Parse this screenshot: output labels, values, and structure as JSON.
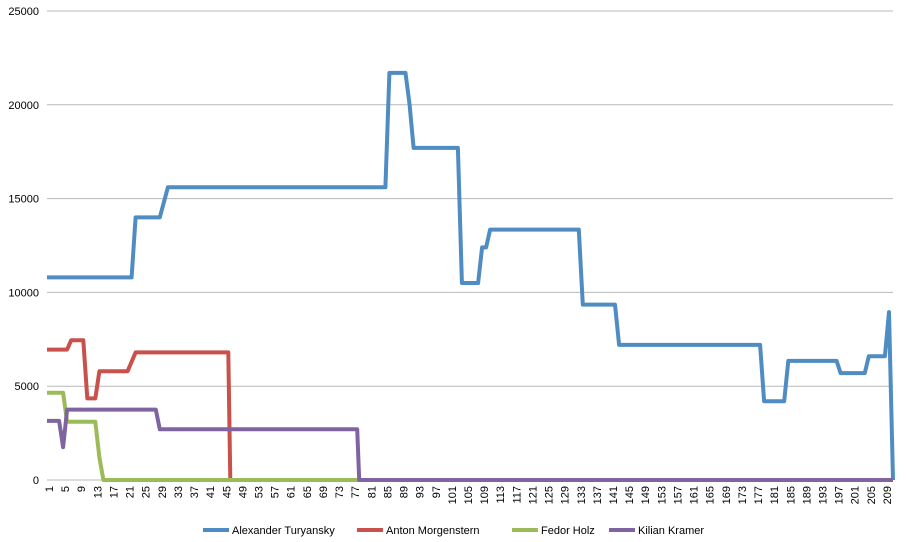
{
  "chart_data": {
    "type": "line",
    "title": "",
    "xlabel": "",
    "ylabel": "",
    "ylim": [
      0,
      25000
    ],
    "yticks": [
      0,
      5000,
      10000,
      15000,
      20000,
      25000
    ],
    "xlim": [
      1,
      210
    ],
    "xtick_start": 1,
    "xtick_step": 4,
    "grid": "horizontal",
    "legend_position": "bottom",
    "series": [
      {
        "name": "Alexander Turyansky",
        "color": "#4f8cc2",
        "points": [
          [
            1,
            10800
          ],
          [
            22,
            10800
          ],
          [
            23,
            14000
          ],
          [
            29,
            14000
          ],
          [
            31,
            15600
          ],
          [
            85,
            15600
          ],
          [
            86,
            21700
          ],
          [
            90,
            21700
          ],
          [
            91,
            20000
          ],
          [
            92,
            17700
          ],
          [
            103,
            17700
          ],
          [
            104,
            10500
          ],
          [
            108,
            10500
          ],
          [
            109,
            12400
          ],
          [
            110,
            12400
          ],
          [
            111,
            13350
          ],
          [
            133,
            13350
          ],
          [
            134,
            9350
          ],
          [
            142,
            9350
          ],
          [
            143,
            7200
          ],
          [
            178,
            7200
          ],
          [
            179,
            4200
          ],
          [
            184,
            4200
          ],
          [
            185,
            6350
          ],
          [
            197,
            6350
          ],
          [
            198,
            5700
          ],
          [
            204,
            5700
          ],
          [
            205,
            6600
          ],
          [
            209,
            6600
          ],
          [
            210,
            8950
          ],
          [
            211,
            0
          ]
        ]
      },
      {
        "name": "Anton Morgenstern",
        "color": "#c9504b",
        "points": [
          [
            1,
            6950
          ],
          [
            6,
            6950
          ],
          [
            7,
            7450
          ],
          [
            10,
            7450
          ],
          [
            11,
            4350
          ],
          [
            13,
            4350
          ],
          [
            14,
            5800
          ],
          [
            21,
            5800
          ],
          [
            23,
            6800
          ],
          [
            46,
            6800
          ],
          [
            46.5,
            0
          ],
          [
            211,
            0
          ]
        ]
      },
      {
        "name": "Fedor Holz",
        "color": "#9bbb59",
        "points": [
          [
            1,
            4650
          ],
          [
            5,
            4650
          ],
          [
            6,
            3100
          ],
          [
            13,
            3100
          ],
          [
            14,
            1200
          ],
          [
            15,
            0
          ],
          [
            211,
            0
          ]
        ]
      },
      {
        "name": "Kilian Kramer",
        "color": "#8064a2",
        "points": [
          [
            1,
            3150
          ],
          [
            4,
            3150
          ],
          [
            5,
            1750
          ],
          [
            6,
            3750
          ],
          [
            28,
            3750
          ],
          [
            29,
            2700
          ],
          [
            78,
            2700
          ],
          [
            78.5,
            0
          ],
          [
            211,
            0
          ]
        ]
      }
    ]
  }
}
